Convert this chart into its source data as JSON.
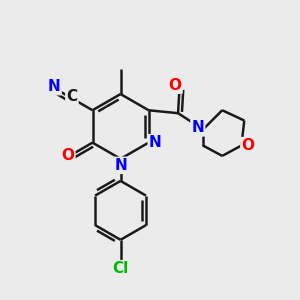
{
  "background_color": "#ebebeb",
  "bond_color": "#1a1a1a",
  "bond_width": 1.8,
  "atom_colors": {
    "N": "#0000ff",
    "O": "#ff0000",
    "Cl": "#00bb00",
    "C": "#1a1a1a"
  },
  "font_size_atoms": 11,
  "font_size_methyl": 9
}
